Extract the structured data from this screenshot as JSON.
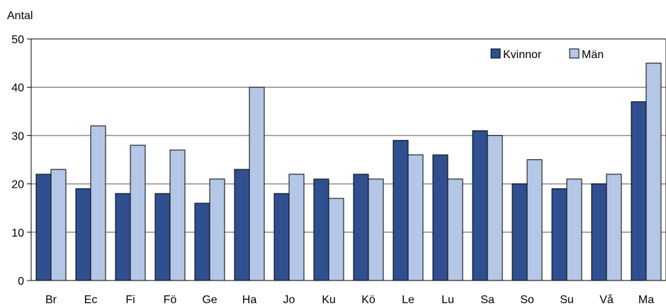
{
  "chart_data": {
    "type": "bar",
    "title": "",
    "xlabel": "",
    "ylabel": "Antal",
    "ylim": [
      0,
      50
    ],
    "yticks": [
      0,
      10,
      20,
      30,
      40,
      50
    ],
    "grid": true,
    "legend_position": "top-right",
    "categories": [
      "Br",
      "Ec",
      "Fi",
      "Fö",
      "Ge",
      "Ha",
      "Jo",
      "Ku",
      "Kö",
      "Le",
      "Lu",
      "Sa",
      "So",
      "Su",
      "Vå",
      "Ma"
    ],
    "series": [
      {
        "name": "Kvinnor",
        "color": "#2f4f8f",
        "values": [
          22,
          19,
          18,
          18,
          16,
          23,
          18,
          21,
          22,
          29,
          26,
          31,
          20,
          19,
          20,
          37
        ]
      },
      {
        "name": "Män",
        "color": "#b4c7e7",
        "values": [
          23,
          32,
          28,
          27,
          21,
          40,
          22,
          17,
          21,
          26,
          21,
          30,
          25,
          21,
          22,
          45
        ]
      }
    ]
  }
}
